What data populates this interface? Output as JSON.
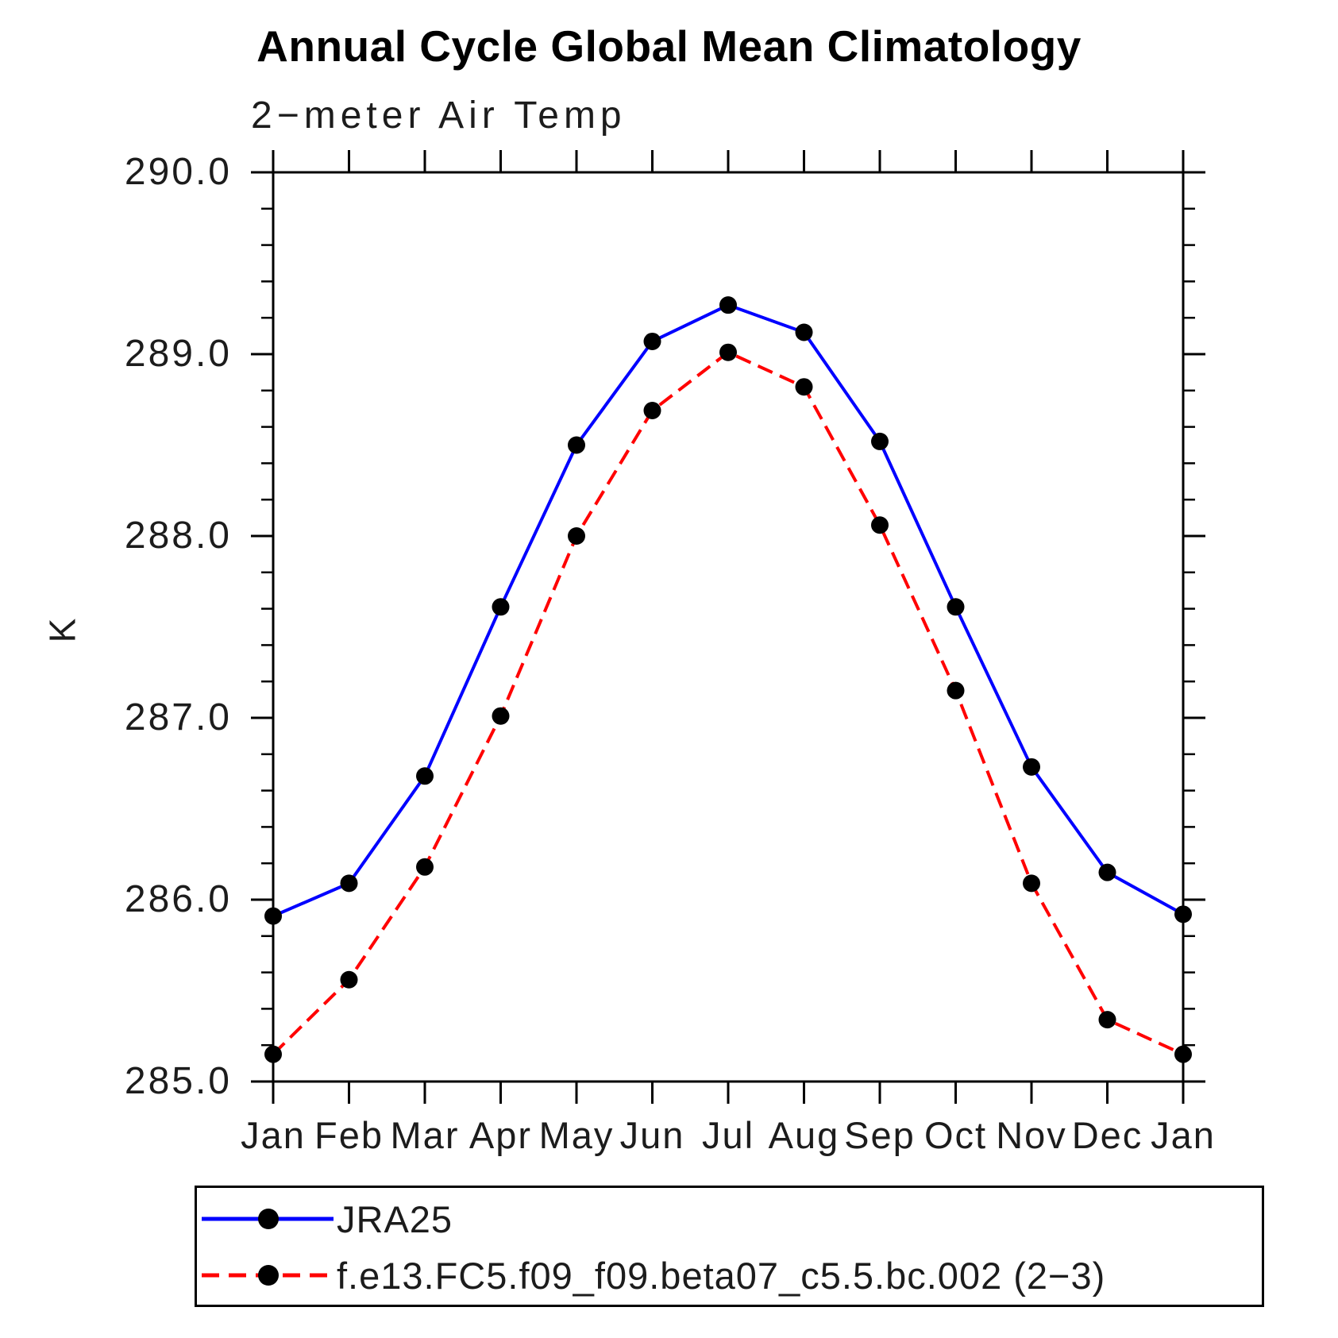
{
  "chart_data": {
    "type": "line",
    "title": "Annual Cycle Global Mean Climatology",
    "subtitle": "2−meter Air Temp",
    "xlabel": "",
    "ylabel": "K",
    "categories": [
      "Jan",
      "Feb",
      "Mar",
      "Apr",
      "May",
      "Jun",
      "Jul",
      "Aug",
      "Sep",
      "Oct",
      "Nov",
      "Dec",
      "Jan"
    ],
    "ylim": [
      285.0,
      290.0
    ],
    "ytick_interval": 1.0,
    "yminor_interval": 0.2,
    "ytick_labels": [
      "290.0",
      "289.0",
      "288.0",
      "287.0",
      "286.0",
      "285.0"
    ],
    "grid": false,
    "frame": true,
    "legend_position": "bottom-left",
    "axis_color": "#000000",
    "marker_color": "#000000",
    "series": [
      {
        "name": "JRA25",
        "color": "#0000ff",
        "style": "solid",
        "marker": "circle",
        "values": [
          285.91,
          286.09,
          286.68,
          287.61,
          288.5,
          289.07,
          289.27,
          289.12,
          288.52,
          287.61,
          286.73,
          286.15,
          285.92
        ]
      },
      {
        "name": "f.e13.FC5.f09_f09.beta07_c5.5.bc.002 (2−3)",
        "color": "#ff0000",
        "style": "dashed",
        "marker": "circle",
        "values": [
          285.15,
          285.56,
          286.18,
          287.01,
          288.0,
          288.69,
          289.01,
          288.82,
          288.06,
          287.15,
          286.09,
          285.34,
          285.15
        ]
      }
    ]
  }
}
